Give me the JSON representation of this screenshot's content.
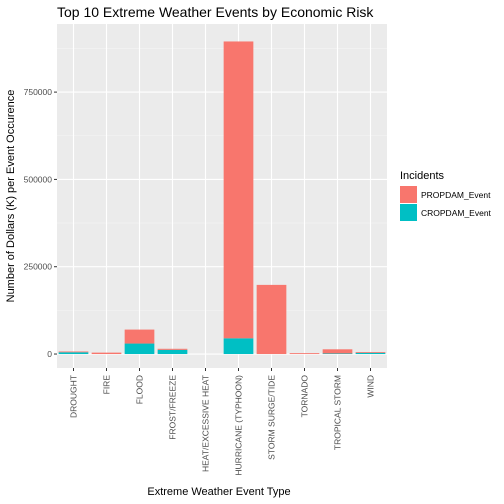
{
  "chart_data": {
    "type": "bar",
    "stacked": true,
    "title": "Top 10 Extreme Weather Events by Economic Risk",
    "xlabel": "Extreme Weather Event Type",
    "ylabel": "Number of Dollars (K) per Event Occurence",
    "categories": [
      "DROUGHT",
      "FIRE",
      "FLOOD",
      "FROST/FREEZE",
      "HEAT/EXCESSIVE HEAT",
      "HURRICANE (TYPHOON)",
      "STORM SURGE/TIDE",
      "TORNADO",
      "TROPICAL STORM",
      "WIND"
    ],
    "series": [
      {
        "name": "PROPDAM_Event",
        "color": "#F8766D",
        "values": [
          1000,
          4000,
          40000,
          3000,
          0,
          850000,
          198000,
          2500,
          12000,
          2000
        ]
      },
      {
        "name": "CROPDAM_Event",
        "color": "#00BFC4",
        "values": [
          5000,
          0,
          30000,
          12000,
          0,
          45000,
          0,
          0,
          1500,
          3500
        ]
      }
    ],
    "ylim": [
      -40000,
      945000
    ],
    "yticks": [
      0,
      250000,
      500000,
      750000
    ],
    "ytick_labels": [
      "0",
      "250000",
      "500000",
      "750000"
    ],
    "grid": true,
    "legend": {
      "title": "Incidents",
      "position": "right"
    }
  }
}
